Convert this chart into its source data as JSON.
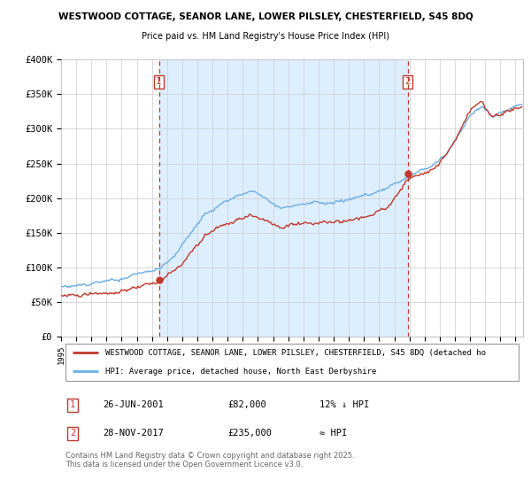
{
  "title1": "WESTWOOD COTTAGE, SEANOR LANE, LOWER PILSLEY, CHESTERFIELD, S45 8DQ",
  "title2": "Price paid vs. HM Land Registry's House Price Index (HPI)",
  "legend1": "WESTWOOD COTTAGE, SEANOR LANE, LOWER PILSLEY, CHESTERFIELD, S45 8DQ (detached ho",
  "legend2": "HPI: Average price, detached house, North East Derbyshire",
  "footer": "Contains HM Land Registry data © Crown copyright and database right 2025.\nThis data is licensed under the Open Government Licence v3.0.",
  "sale1_date": "26-JUN-2001",
  "sale1_price": 82000,
  "sale1_label": "12% ↓ HPI",
  "sale2_date": "28-NOV-2017",
  "sale2_price": 235000,
  "sale2_label": "≈ HPI",
  "hpi_color": "#6aade4",
  "price_color": "#c0392b",
  "dashed_color": "#c0392b",
  "shade_color": "#ddeeff",
  "background_color": "#ffffff",
  "grid_color": "#cccccc",
  "ylim": [
    0,
    400000
  ],
  "yticks": [
    0,
    50000,
    100000,
    150000,
    200000,
    250000,
    300000,
    350000,
    400000
  ],
  "ytick_labels": [
    "£0",
    "£50K",
    "£100K",
    "£150K",
    "£200K",
    "£250K",
    "£300K",
    "£350K",
    "£400K"
  ]
}
